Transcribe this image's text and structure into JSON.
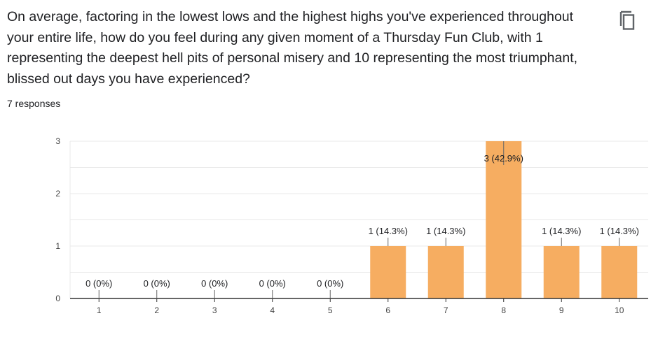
{
  "question": "On average, factoring in the lowest lows and the highest highs you've experienced throughout your entire life, how do you feel during any given moment of a Thursday Fun Club, with 1 representing the deepest hell pits of personal misery and 10 representing the most triumphant, blissed out days you have experienced?",
  "response_count": "7 responses",
  "copy_icon": "copy-icon",
  "colors": {
    "bar": "#f6ad61",
    "grid": "#e8e8e8",
    "axis": "#333333",
    "text": "#202124"
  },
  "chart_data": {
    "type": "bar",
    "categories": [
      "1",
      "2",
      "3",
      "4",
      "5",
      "6",
      "7",
      "8",
      "9",
      "10"
    ],
    "values": [
      0,
      0,
      0,
      0,
      0,
      1,
      1,
      3,
      1,
      1
    ],
    "data_labels": [
      "0 (0%)",
      "0 (0%)",
      "0 (0%)",
      "0 (0%)",
      "0 (0%)",
      "1 (14.3%)",
      "1 (14.3%)",
      "3 (42.9%)",
      "1 (14.3%)",
      "1 (14.3%)"
    ],
    "yticks": [
      "0",
      "1",
      "2",
      "3"
    ],
    "ylim": [
      0,
      3
    ],
    "grid": true,
    "xlabel": "",
    "ylabel": ""
  }
}
